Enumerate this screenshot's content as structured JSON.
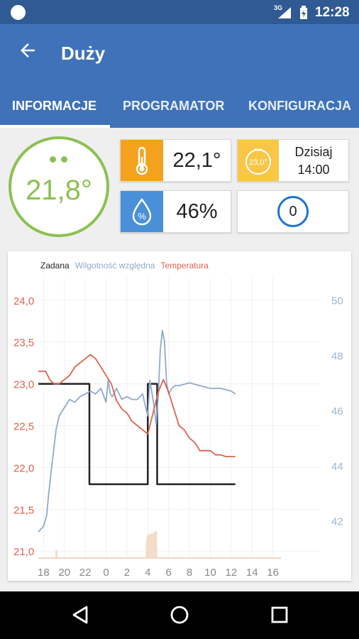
{
  "status_bar": {
    "network": "3G",
    "time": "12:28"
  },
  "app_bar": {
    "title": "Duży"
  },
  "tabs": [
    {
      "label": "INFORMACJE",
      "selected": true
    },
    {
      "label": "PROGRAMATOR",
      "selected": false
    },
    {
      "label": "KONFIGURACJA",
      "selected": false
    }
  ],
  "current": {
    "temperature": "21,8°"
  },
  "tiles": {
    "room_temperature": {
      "value": "22,1°"
    },
    "humidity": {
      "value": "46%",
      "icon_text": "%"
    },
    "schedule": {
      "badge": "23,0°",
      "day": "Dzisiaj",
      "time": "14:00"
    },
    "counter": {
      "value": "0"
    }
  },
  "colors": {
    "primary": "#3f72b8",
    "status_bar": "#2f5a93",
    "green": "#8cc152",
    "orange": "#f4a21d",
    "yellow": "#f9c646",
    "blue": "#4a90d9",
    "setpoint_line": "#222222",
    "humidity_line": "#8fa9cc",
    "temperature_line": "#e0614d"
  },
  "chart_data": {
    "type": "line",
    "legend": [
      "Zadana",
      "Wilgotność względna",
      "Temperatura"
    ],
    "legend_position": "top-left",
    "x_ticks": [
      "18",
      "20",
      "22",
      "0",
      "2",
      "4",
      "6",
      "8",
      "10",
      "12",
      "14",
      "16"
    ],
    "x_range": [
      17.5,
      40.5
    ],
    "y_left": {
      "ticks": [
        "24,0",
        "23,5",
        "23,0",
        "22,5",
        "22,0",
        "21,5",
        "21,0"
      ],
      "range": [
        20.9,
        24.1
      ]
    },
    "y_right": {
      "ticks": [
        "50",
        "48",
        "46",
        "44",
        "42"
      ],
      "range": [
        40.6,
        50.3
      ]
    },
    "grid": true,
    "series": [
      {
        "name": "Zadana",
        "axis": "left",
        "x": [
          17.5,
          22.4,
          22.4,
          28.0,
          28.0,
          28.9,
          28.9,
          36.4
        ],
        "y": [
          23.0,
          23.0,
          21.8,
          21.8,
          23.0,
          23.0,
          21.8,
          21.8
        ]
      },
      {
        "name": "Wilgotność względna",
        "axis": "right",
        "x": [
          17.5,
          18.0,
          18.3,
          18.5,
          18.8,
          19.2,
          19.5,
          20.0,
          20.5,
          21.0,
          21.5,
          22.0,
          22.5,
          23.0,
          23.5,
          24.0,
          24.2,
          24.4,
          24.6,
          25.0,
          25.5,
          26.0,
          26.5,
          27.0,
          27.5,
          27.8,
          28.0,
          28.2,
          28.5,
          28.8,
          29.0,
          29.2,
          29.4,
          29.6,
          29.8,
          30.0,
          30.3,
          30.6,
          31.0,
          32.0,
          33.0,
          34.0,
          35.0,
          36.0,
          36.4
        ],
        "y": [
          41.6,
          41.8,
          42.2,
          43.0,
          44.0,
          45.3,
          45.8,
          46.1,
          46.4,
          46.3,
          46.5,
          46.6,
          46.7,
          46.6,
          46.8,
          46.3,
          47.1,
          46.6,
          46.5,
          46.8,
          46.4,
          46.5,
          46.4,
          46.4,
          46.6,
          46.1,
          45.8,
          47.1,
          46.4,
          45.5,
          46.5,
          48.2,
          48.9,
          48.5,
          47.0,
          46.6,
          46.8,
          46.9,
          46.9,
          47.0,
          46.9,
          46.8,
          46.8,
          46.7,
          46.6
        ]
      },
      {
        "name": "Temperatura",
        "axis": "left",
        "x": [
          17.5,
          18.2,
          18.6,
          19.0,
          19.5,
          20.0,
          20.5,
          21.0,
          21.5,
          22.0,
          22.5,
          23.0,
          23.5,
          24.0,
          24.5,
          25.0,
          25.5,
          26.0,
          26.5,
          27.0,
          27.5,
          28.0,
          28.5,
          29.0,
          29.5,
          30.0,
          30.5,
          31.0,
          31.5,
          32.0,
          32.5,
          33.0,
          33.5,
          34.0,
          34.5,
          35.0,
          35.5,
          36.0,
          36.4
        ],
        "y": [
          23.15,
          23.15,
          23.05,
          23.0,
          23.0,
          23.05,
          23.1,
          23.2,
          23.25,
          23.3,
          23.35,
          23.3,
          23.2,
          23.1,
          23.0,
          22.8,
          22.7,
          22.65,
          22.55,
          22.5,
          22.45,
          22.4,
          22.65,
          22.9,
          23.05,
          22.9,
          22.7,
          22.5,
          22.45,
          22.35,
          22.3,
          22.2,
          22.2,
          22.2,
          22.15,
          22.15,
          22.13,
          22.13,
          22.13
        ]
      }
    ],
    "bars": {
      "axis_max": 1.0,
      "x": [
        19.2,
        27.8,
        27.9,
        28.0,
        28.2,
        28.4,
        28.6,
        28.8,
        28.9
      ],
      "heights": [
        0.3,
        0.5,
        0.8,
        0.85,
        0.88,
        0.9,
        0.95,
        1.0,
        1.0
      ]
    }
  }
}
